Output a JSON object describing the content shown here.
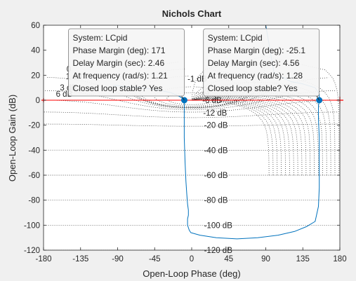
{
  "chart_data": {
    "type": "line",
    "title": "Nichols Chart",
    "xlabel": "Open-Loop Phase (deg)",
    "ylabel": "Open-Loop Gain (dB)",
    "xlim": [
      -180,
      180
    ],
    "ylim": [
      -120,
      60
    ],
    "xticks": [
      -180,
      -135,
      -90,
      -45,
      0,
      45,
      90,
      135,
      180
    ],
    "yticks": [
      -120,
      -100,
      -80,
      -60,
      -40,
      -20,
      0,
      20,
      40,
      60
    ],
    "grid": true,
    "colors": {
      "series": "#0072bd",
      "critical": "#ff0000",
      "grid": "#262626",
      "axes_bg": "#ffffff",
      "figure_bg": "#f0f0f0"
    },
    "grid_gain_labels": [
      {
        "text": "0",
        "phase": -152,
        "gain": 25
      },
      {
        "text": "1 dB",
        "phase": -153,
        "gain": 19
      },
      {
        "text": "3 dB",
        "phase": -160,
        "gain": 10
      },
      {
        "text": "6 dB",
        "phase": -165,
        "gain": 5
      },
      {
        "text": "-1 dB",
        "phase": -5,
        "gain": 17
      },
      {
        "text": "-3",
        "phase": 13,
        "gain": 7
      },
      {
        "text": "-6 dB",
        "phase": 13,
        "gain": 0
      },
      {
        "text": "-12 dB",
        "phase": 14,
        "gain": -10
      },
      {
        "text": "-20 dB",
        "phase": 15,
        "gain": -20
      },
      {
        "text": "-40 dB",
        "phase": 15,
        "gain": -40
      },
      {
        "text": "-60 dB",
        "phase": 15,
        "gain": -60
      },
      {
        "text": "-80 dB",
        "phase": 15,
        "gain": -80
      },
      {
        "text": "-100 dB",
        "phase": 15,
        "gain": -100
      },
      {
        "text": "-120 dB",
        "phase": 15,
        "gain": -120
      }
    ],
    "series": [
      {
        "x": [
          -95,
          -80,
          -60,
          -40,
          -25,
          -15,
          -10,
          -9,
          -9,
          -9,
          -8,
          -7,
          -6,
          -5,
          -4,
          -4,
          -5,
          -5,
          -5,
          -4,
          -3,
          -1,
          10,
          30,
          55,
          80,
          105,
          125,
          140,
          150,
          154,
          155,
          155,
          155,
          154,
          154,
          155,
          155,
          150,
          135,
          120,
          100,
          90
        ],
        "y": [
          12,
          11,
          10,
          8,
          6,
          3,
          1,
          0,
          -10,
          -30,
          -50,
          -65,
          -75,
          -83,
          -88,
          -92,
          -95,
          -97,
          -100,
          -102,
          -104,
          -106,
          -108,
          -110,
          -111,
          -110,
          -108,
          -105,
          -101,
          -97,
          -85,
          -70,
          -50,
          -30,
          -15,
          -5,
          0,
          5,
          10,
          13,
          15,
          22,
          60
        ]
      }
    ],
    "markers": [
      {
        "phase": -9,
        "gain": 0
      },
      {
        "phase": 155,
        "gain": 0
      }
    ],
    "critical_point": {
      "phase": 180,
      "gain": 0
    },
    "annotations": [
      {
        "phase": -9,
        "gain": 0,
        "lines": [
          "System: LCpid",
          "Phase Margin (deg): 171",
          "Delay Margin (sec): 2.46",
          "At frequency (rad/s): 1.21",
          "Closed loop stable? Yes"
        ]
      },
      {
        "phase": 155,
        "gain": 0,
        "lines": [
          "System: LCpid",
          "Phase Margin (deg): -25.1",
          "Delay Margin (sec): 4.56",
          "At frequency (rad/s): 1.28",
          "Closed loop stable? Yes"
        ]
      }
    ]
  }
}
